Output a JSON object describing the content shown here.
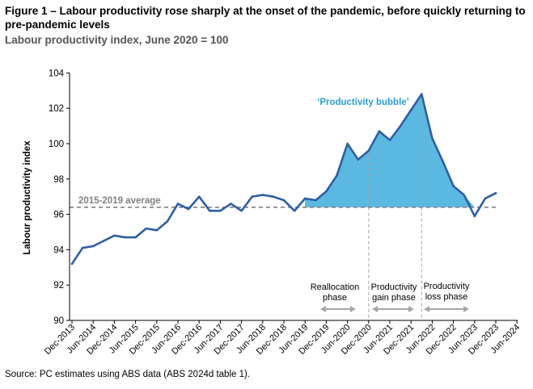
{
  "title": "Figure 1 – Labour productivity rose sharply at the onset of the pandemic, before quickly returning to pre-pandemic levels",
  "subtitle": "Labour productivity index, June 2020 = 100",
  "source": "Source: PC estimates using ABS data (ABS 2024d table 1).",
  "colors": {
    "line": "#2E5EA8",
    "bubble": "#5BB8E0",
    "average": "#808080",
    "phase": "#A6A6A6",
    "bubble_label": "#2A9FD6"
  },
  "chart_data": {
    "type": "line",
    "ylabel": "Labour productivity index",
    "ylim": [
      90,
      104
    ],
    "yticks": [
      90,
      92,
      94,
      96,
      98,
      100,
      102,
      104
    ],
    "xticks": [
      "Dec-2013",
      "Jun-2014",
      "Dec-2014",
      "Jun-2015",
      "Dec-2015",
      "Jun-2016",
      "Dec-2016",
      "Jun-2017",
      "Dec-2017",
      "Jun-2018",
      "Dec-2018",
      "Jun-2019",
      "Dec-2019",
      "Jun-2020",
      "Dec-2020",
      "Jun-2021",
      "Dec-2021",
      "Jun-2022",
      "Dec-2022",
      "Jun-2023",
      "Dec-2023",
      "Jun-2024"
    ],
    "series": [
      {
        "name": "Labour productivity index",
        "values": [
          93.2,
          94.1,
          94.2,
          94.5,
          94.8,
          94.7,
          94.7,
          95.2,
          95.1,
          95.6,
          96.6,
          96.3,
          97.0,
          96.2,
          96.2,
          96.6,
          96.2,
          97.0,
          97.1,
          97.0,
          96.8,
          96.2,
          96.9,
          96.8,
          97.3,
          98.2,
          100.0,
          99.1,
          99.6,
          100.7,
          100.2,
          101.0,
          101.9,
          102.8,
          100.3,
          99.0,
          97.6,
          97.1,
          95.9,
          96.9,
          97.2
        ]
      }
    ],
    "average": {
      "label": "2015-2019 average",
      "value": 96.4
    },
    "annotations": [
      {
        "label": "‘Productivity bubble’"
      },
      {
        "label": "Reallocation phase",
        "lines": [
          "Reallocation",
          "phase"
        ]
      },
      {
        "label": "Productivity gain phase",
        "lines": [
          "Productivity",
          "gain phase"
        ]
      },
      {
        "label": "Productivity loss phase",
        "lines": [
          "Productivity",
          "loss phase"
        ]
      }
    ]
  }
}
